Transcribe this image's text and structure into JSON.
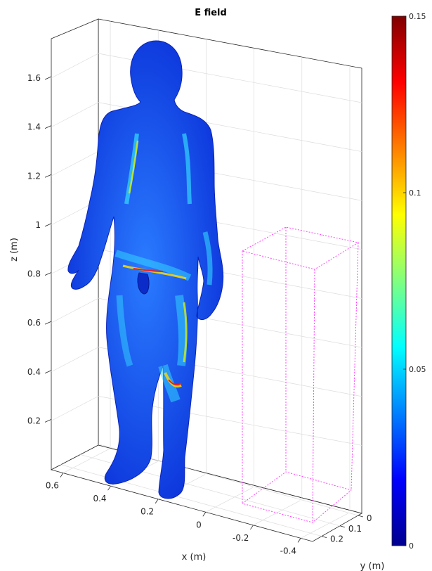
{
  "chart_data": {
    "type": "3d-surface",
    "title": "E field",
    "xlabel": "x  (m)",
    "ylabel": "y  (m)",
    "zlabel": "z  (m)",
    "x_ticks": [
      "0.6",
      "0.4",
      "0.2",
      "0",
      "-0.2",
      "-0.4"
    ],
    "y_ticks": [
      "0",
      "0.1",
      "0.2"
    ],
    "z_ticks": [
      "0.2",
      "0.4",
      "0.6",
      "0.8",
      "1",
      "1.2",
      "1.4",
      "1.6"
    ],
    "colorbar": {
      "colormap": "jet",
      "min": 0,
      "max": 0.15,
      "ticks": [
        "0",
        "0.05",
        "0.1",
        "0.15"
      ]
    },
    "grid": true,
    "objects": [
      "human body surface colored by E field magnitude",
      "dashed box outline"
    ],
    "box_color": "#ff33ff"
  }
}
